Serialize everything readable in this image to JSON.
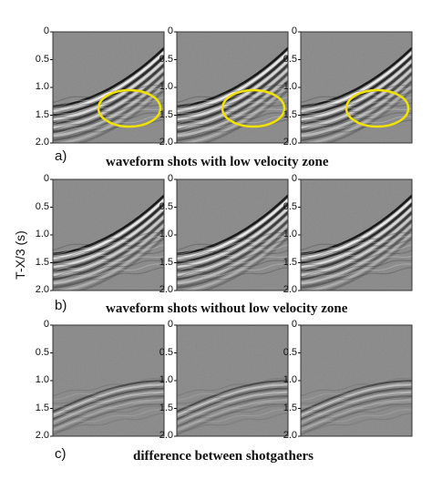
{
  "figure": {
    "ylabel": "T-X/3 (s)",
    "ticks": [
      "0",
      "0.5",
      "1.0",
      "1.5",
      "2.0"
    ],
    "rows": [
      {
        "letter": "a)",
        "caption": "waveform shots with low velocity zone",
        "highlight": "yellow ellipse"
      },
      {
        "letter": "b)",
        "caption": "waveform shots without low velocity zone"
      },
      {
        "letter": "c)",
        "caption": "difference between shotgathers"
      }
    ],
    "colors": {
      "background_gray": "#888888",
      "highlight": "#f2e200",
      "frame": "#333333"
    }
  }
}
